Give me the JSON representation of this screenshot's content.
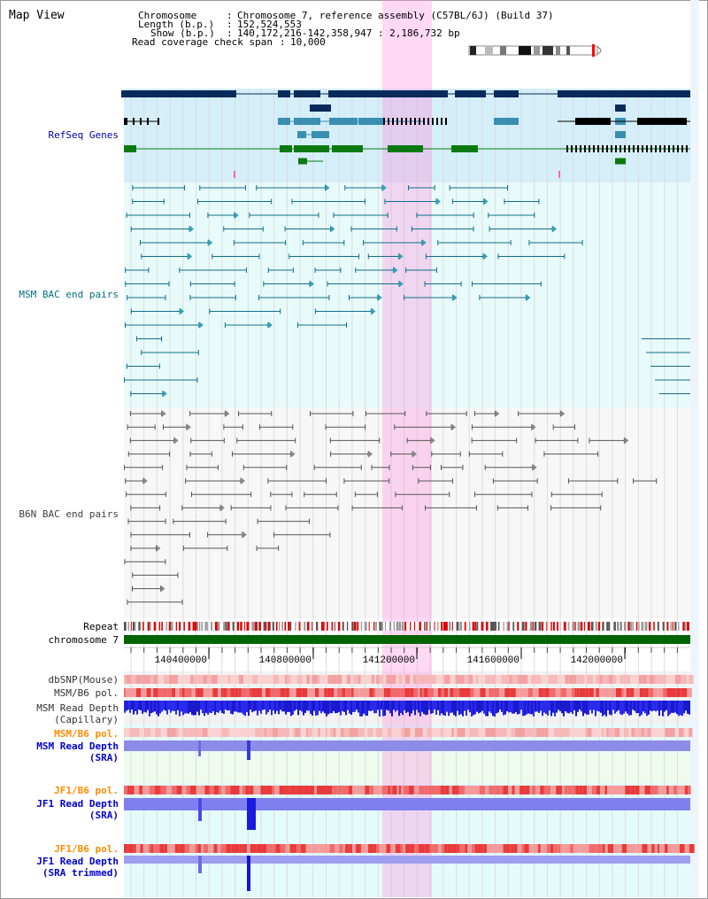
{
  "title": "Map View",
  "header": {
    "chromosome_label": "Chromosome",
    "chromosome_value": "Chromosome 7, reference assembly (C57BL/6J) (Build 37)",
    "length_label": "Length (b.p.)",
    "length_value": "152,524,553",
    "show_label": "Show (b.p.)",
    "show_value": "140,172,216-142,358,947 : 2,186,732 bp",
    "coverage_label": "Read coverage check span",
    "coverage_value": "10,000",
    "sep": ":"
  },
  "tracks": {
    "refseq": "RefSeq Genes",
    "msm_bac": "MSM BAC end pairs",
    "b6n_bac": "B6N BAC end pairs",
    "repeat": "Repeat",
    "chromosome": "chromosome 7",
    "dbsnp": "dbSNP(Mouse)",
    "msm_b6_pol_1": "MSM/B6 pol.",
    "msm_depth_cap_1": "MSM Read Depth",
    "msm_depth_cap_2": "(Capillary)",
    "msm_b6_pol_2": "MSM/B6 pol.",
    "msm_depth_sra_1": "MSM Read Depth",
    "msm_depth_sra_2": "(SRA)",
    "jf1_b6_pol_1": "JF1/B6 pol.",
    "jf1_depth_sra_1": "JF1 Read Depth",
    "jf1_depth_sra_2": "(SRA)",
    "jf1_b6_pol_2": "JF1/B6 pol.",
    "jf1_depth_trim_1": "JF1 Read Depth",
    "jf1_depth_trim_2": "(SRA trimmed)"
  },
  "axis": {
    "ticks": [
      "140400000",
      "140800000",
      "141200000",
      "141600000",
      "142000000"
    ]
  },
  "colors": {
    "refseq_label": "#0000aa",
    "msm_label": "#007080",
    "b6n_label": "#404040",
    "orange_label": "#ff8c00",
    "blue_label": "#0000cc",
    "highlight": "#ff88dd",
    "chromosome_bar": "#006400",
    "navy": "#0a2a5a",
    "teal": "#3a8fb0",
    "gene_green": "#0a7a10"
  }
}
